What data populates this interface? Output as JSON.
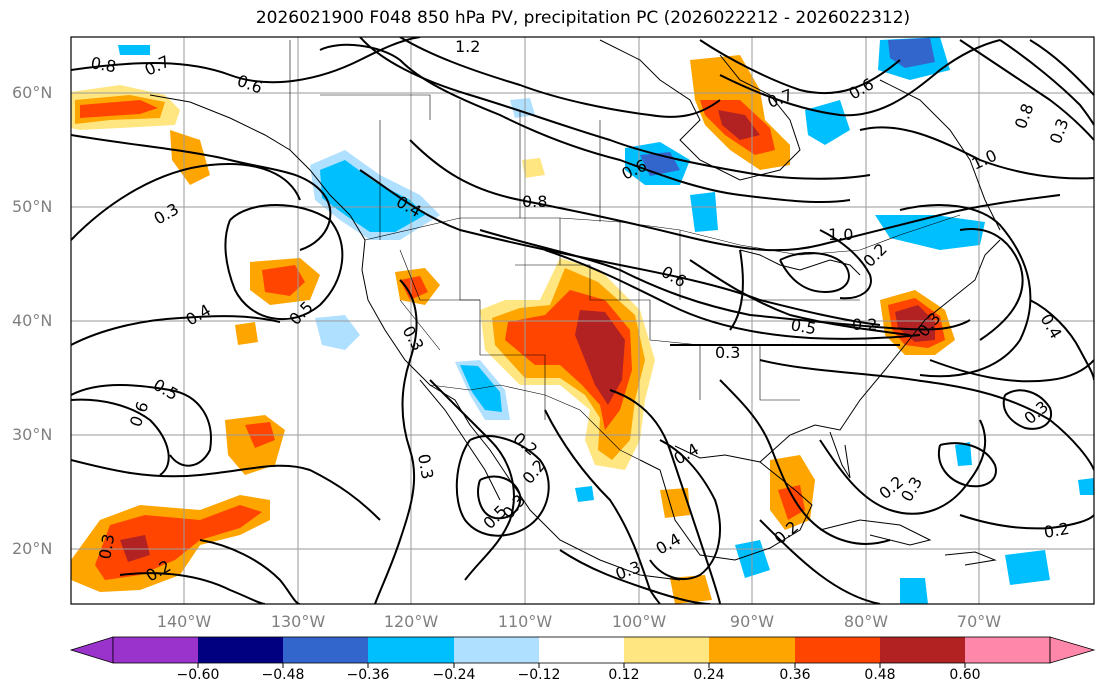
{
  "title": "2026021900 F048 850 hPa PV, precipitation PC (2026022212 - 2026022312)",
  "lat_labels": [
    "60°N",
    "50°N",
    "40°N",
    "30°N",
    "20°N"
  ],
  "lon_labels": [
    "140°W",
    "130°W",
    "120°W",
    "110°W",
    "100°W",
    "90°W",
    "80°W",
    "70°W"
  ],
  "colorbar": {
    "ticks": [
      "−0.60",
      "−0.48",
      "−0.36",
      "−0.24",
      "−0.12",
      "0.12",
      "0.24",
      "0.36",
      "0.48",
      "0.60"
    ],
    "colors": [
      "#9933cc",
      "#000080",
      "#3366cc",
      "#00bfff",
      "#b0e0ff",
      "#ffffff",
      "#ffe680",
      "#ffa500",
      "#ff4500",
      "#b22222",
      "#ff88aa"
    ]
  },
  "contour_labels": [
    "0.8",
    "0.7",
    "0.6",
    "1.2",
    "0.7",
    "0.6",
    "0.8",
    "1.0",
    "0.3",
    "0.4",
    "0.8",
    "1.0",
    "0.4",
    "0.5",
    "0.3",
    "0.6",
    "0.5",
    "0.2",
    "0.3",
    "0.4",
    "0.5",
    "0.6",
    "0.3",
    "0.2",
    "0.3",
    "0.4",
    "0.2",
    "0.3",
    "0.2",
    "0.2",
    "0.3",
    "0.2",
    "0.3",
    "0.4",
    "0.3",
    "0.2",
    "0.3",
    "0.2",
    "0.3",
    "0.6",
    "0.5"
  ]
}
